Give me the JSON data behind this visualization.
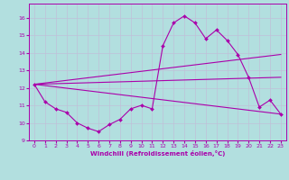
{
  "background_color": "#b2dfdf",
  "grid_color": "#c0c0d8",
  "line_color": "#aa00aa",
  "xlabel": "Windchill (Refroidissement éolien,°C)",
  "xlim": [
    -0.5,
    23.5
  ],
  "ylim": [
    9,
    16.8
  ],
  "yticks": [
    9,
    10,
    11,
    12,
    13,
    14,
    15,
    16
  ],
  "xticks": [
    0,
    1,
    2,
    3,
    4,
    5,
    6,
    7,
    8,
    9,
    10,
    11,
    12,
    13,
    14,
    15,
    16,
    17,
    18,
    19,
    20,
    21,
    22,
    23
  ],
  "series_main": {
    "x": [
      0,
      1,
      2,
      3,
      4,
      5,
      6,
      7,
      8,
      9,
      10,
      11,
      12,
      13,
      14,
      15,
      16,
      17,
      18,
      19,
      20,
      21,
      22,
      23
    ],
    "y": [
      12.2,
      11.2,
      10.8,
      10.6,
      10.0,
      9.7,
      9.5,
      9.9,
      10.2,
      10.8,
      11.0,
      10.8,
      14.4,
      15.7,
      16.1,
      15.7,
      14.8,
      15.3,
      14.7,
      13.9,
      12.6,
      10.9,
      11.3,
      10.5
    ]
  },
  "series_lines": [
    {
      "x": [
        0,
        23
      ],
      "y": [
        12.2,
        13.9
      ]
    },
    {
      "x": [
        0,
        23
      ],
      "y": [
        12.2,
        12.6
      ]
    },
    {
      "x": [
        0,
        23
      ],
      "y": [
        12.2,
        10.5
      ]
    }
  ]
}
